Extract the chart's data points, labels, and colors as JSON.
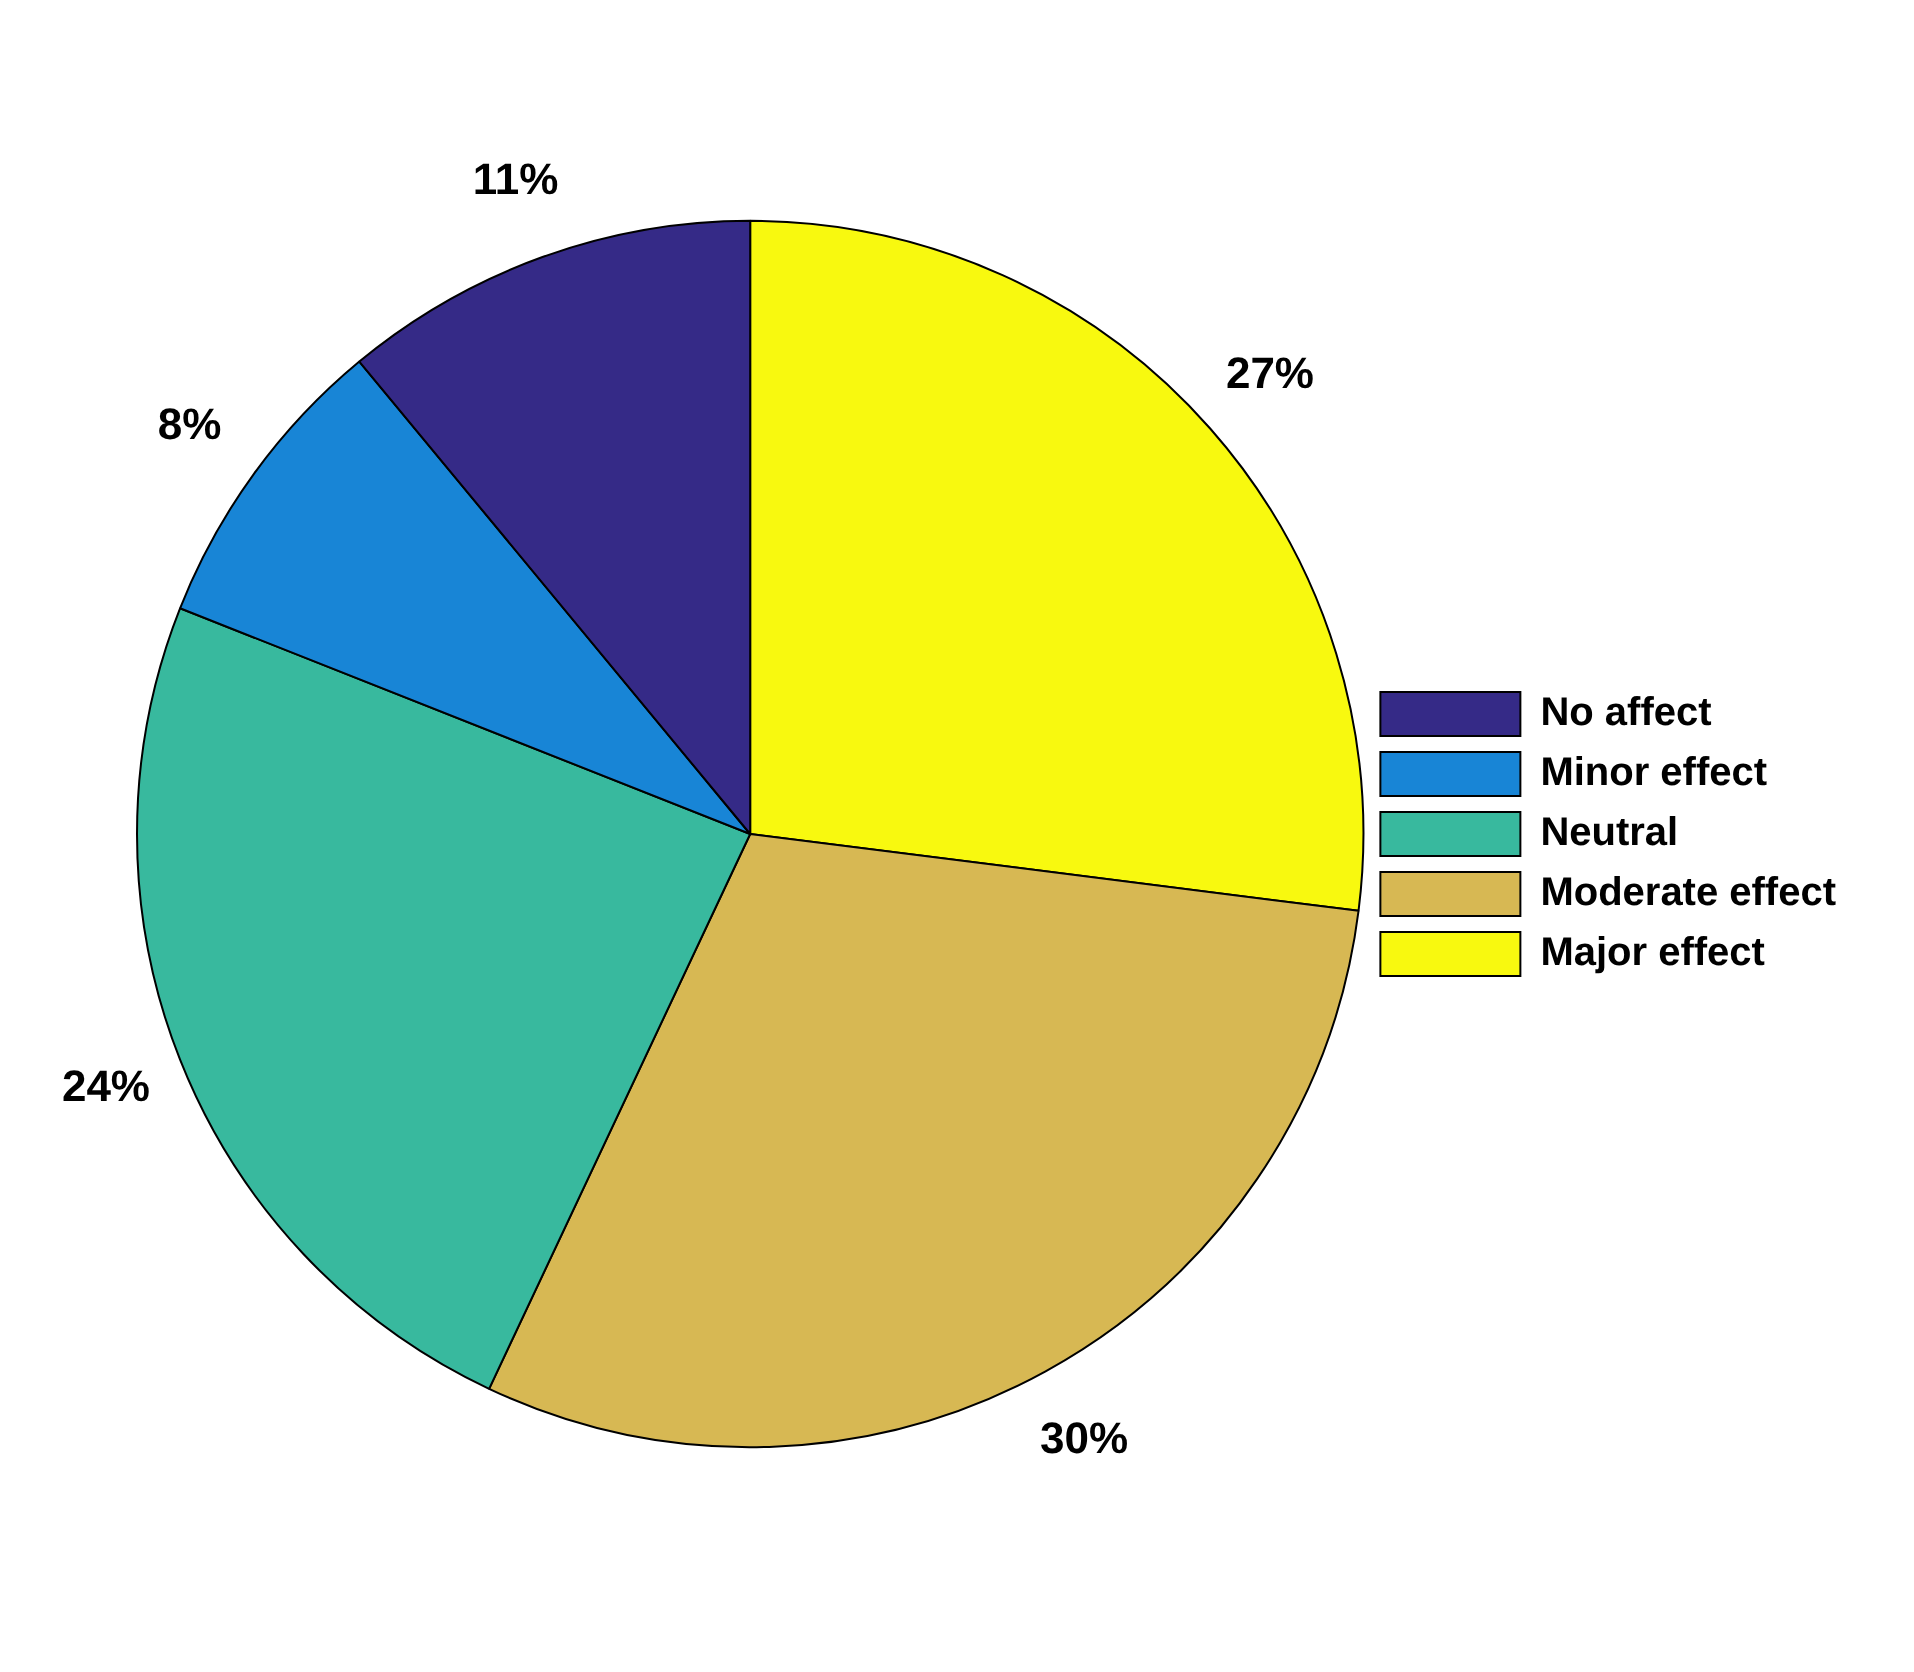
{
  "chart_data": {
    "type": "pie",
    "categories": [
      "No affect",
      "Minor effect",
      "Neutral",
      "Moderate effect",
      "Major effect"
    ],
    "values": [
      11,
      8,
      24,
      30,
      27
    ],
    "colors": [
      "#352a87",
      "#1885d6",
      "#38b99e",
      "#d7b853",
      "#f8f90f"
    ],
    "value_labels": [
      "11%",
      "8%",
      "24%",
      "30%",
      "27%"
    ],
    "legend": "right"
  }
}
